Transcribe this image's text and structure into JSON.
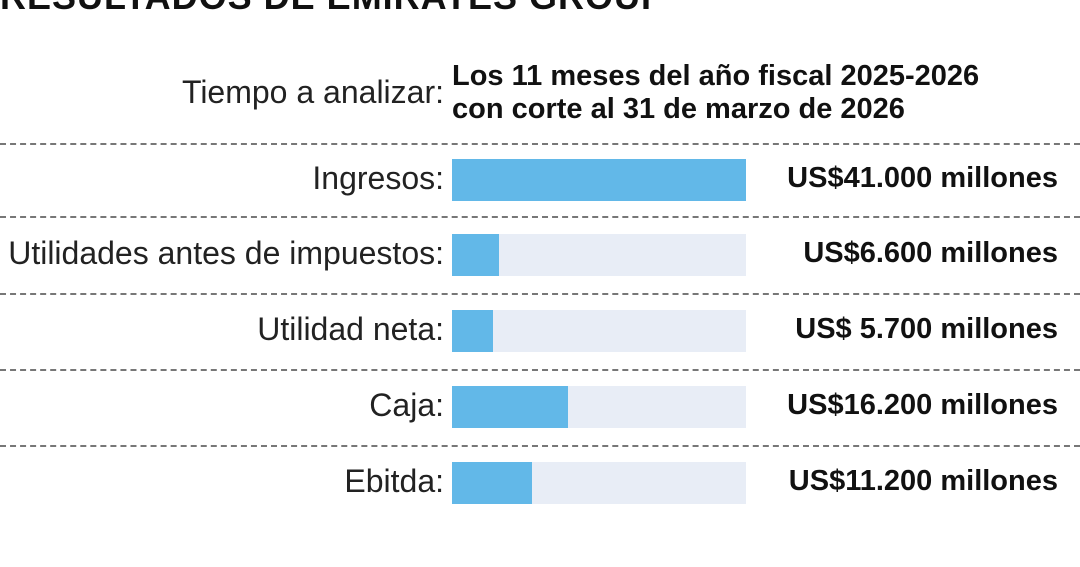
{
  "header": {
    "title": "RESULTADOS DE EMIRATES GROUP"
  },
  "period": {
    "label": "Tiempo a analizar:",
    "line1": "Los 11 meses del año fiscal 2025-2026",
    "line2": "con corte al 31 de marzo de 2026"
  },
  "chart_data": {
    "type": "bar",
    "orientation": "horizontal",
    "categories": [
      "Ingresos:",
      "Utilidades antes de impuestos:",
      "Utilidad neta:",
      "Caja:",
      "Ebitda:"
    ],
    "values": [
      41000,
      6600,
      5700,
      16200,
      11200
    ],
    "value_labels": [
      "US$41.000 millones",
      "US$6.600 millones",
      "US$ 5.700 millones",
      "US$16.200 millones",
      "US$11.200 millones"
    ],
    "unit": "millones de US$",
    "xlim": [
      0,
      41000
    ],
    "grid": false,
    "colors": {
      "bar": "#62b8e8",
      "track": "#e8edf6"
    }
  }
}
